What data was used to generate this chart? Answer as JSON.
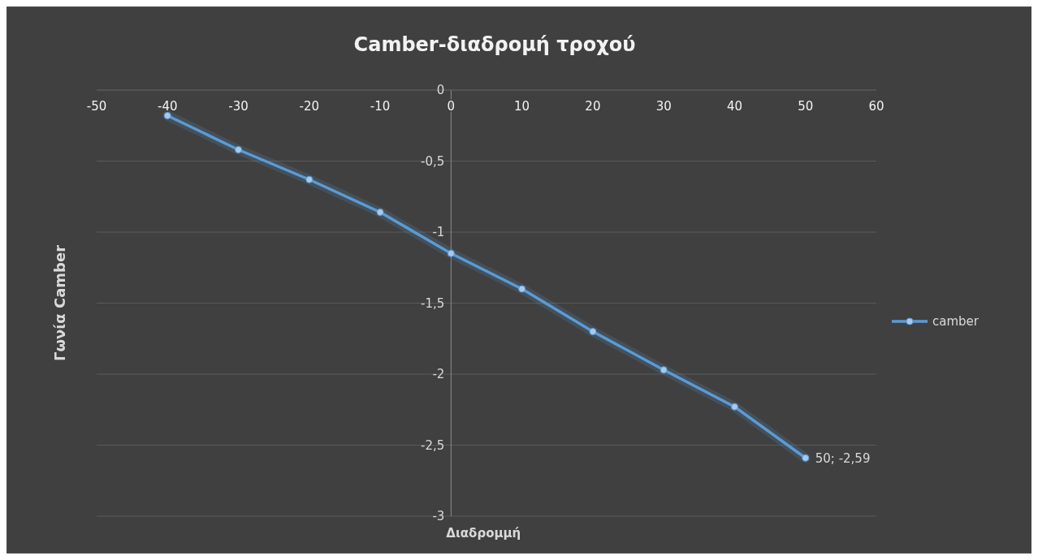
{
  "chart_data": {
    "type": "line",
    "title": "Camber-διαδρομή τροχού",
    "xlabel": "Διαδρομμή",
    "ylabel": "Γωνία Camber",
    "x": [
      -40,
      -30,
      -20,
      -10,
      0,
      10,
      20,
      30,
      40,
      50
    ],
    "series": [
      {
        "name": "camber",
        "color": "#5b9bd5",
        "values": [
          -0.18,
          -0.42,
          -0.63,
          -0.86,
          -1.15,
          -1.4,
          -1.7,
          -1.97,
          -2.23,
          -2.59
        ]
      }
    ],
    "xlim": [
      -50,
      60
    ],
    "xticks": [
      -50,
      -40,
      -30,
      -20,
      -10,
      0,
      10,
      20,
      30,
      40,
      50,
      60
    ],
    "ylim": [
      -3,
      0
    ],
    "yticks": [
      {
        "value": -3,
        "label": "-3"
      },
      {
        "value": -2.5,
        "label": "-2,5"
      },
      {
        "value": -2,
        "label": "-2"
      },
      {
        "value": -1.5,
        "label": "-1,5"
      },
      {
        "value": -1,
        "label": "-1"
      },
      {
        "value": -0.5,
        "label": "-0,5"
      },
      {
        "value": 0,
        "label": "0"
      }
    ],
    "annotations": [
      {
        "text": "50; -2,59",
        "x": 50,
        "y": -2.59
      }
    ],
    "grid": "y",
    "legend": "right",
    "marker": "circle",
    "line_style": "solid"
  }
}
